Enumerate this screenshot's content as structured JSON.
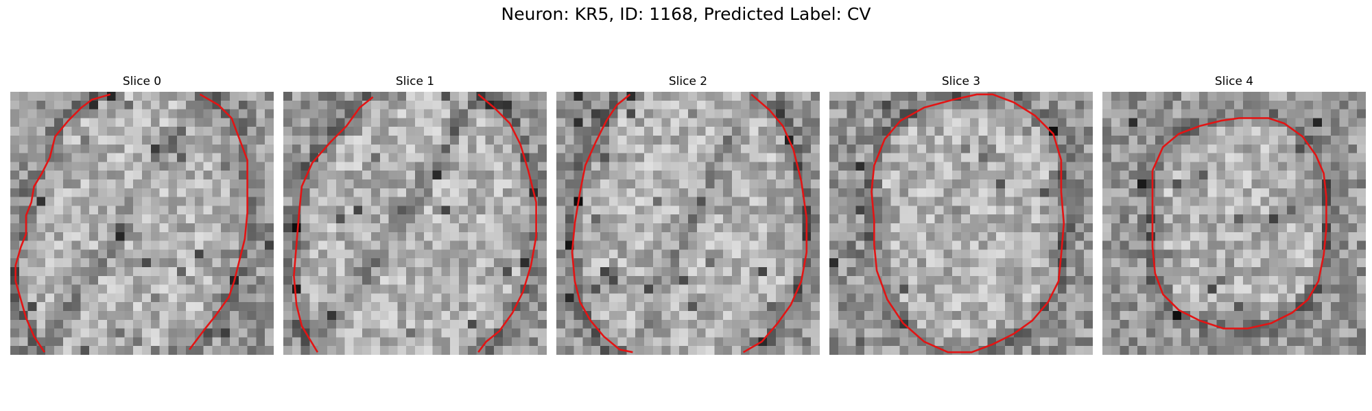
{
  "figure": {
    "title": "Neuron: KR5, ID: 1168, Predicted Label: CV"
  },
  "panels": [
    {
      "title": "Slice 0",
      "contour": [
        [
          0.38,
          0.01
        ],
        [
          0.31,
          0.03
        ],
        [
          0.27,
          0.06
        ],
        [
          0.22,
          0.11
        ],
        [
          0.17,
          0.17
        ],
        [
          0.15,
          0.25
        ],
        [
          0.12,
          0.31
        ],
        [
          0.09,
          0.36
        ],
        [
          0.08,
          0.42
        ],
        [
          0.06,
          0.47
        ],
        [
          0.06,
          0.54
        ],
        [
          0.04,
          0.59
        ],
        [
          0.02,
          0.66
        ],
        [
          0.02,
          0.72
        ],
        [
          0.04,
          0.79
        ],
        [
          0.06,
          0.86
        ],
        [
          0.09,
          0.93
        ],
        [
          0.13,
          0.99
        ]
      ],
      "contour_right": [
        [
          0.72,
          0.01
        ],
        [
          0.79,
          0.05
        ],
        [
          0.84,
          0.1
        ],
        [
          0.87,
          0.18
        ],
        [
          0.9,
          0.26
        ],
        [
          0.9,
          0.36
        ],
        [
          0.9,
          0.46
        ],
        [
          0.89,
          0.56
        ],
        [
          0.87,
          0.64
        ],
        [
          0.85,
          0.72
        ],
        [
          0.83,
          0.78
        ],
        [
          0.78,
          0.85
        ],
        [
          0.74,
          0.9
        ],
        [
          0.68,
          0.98
        ]
      ]
    },
    {
      "title": "Slice 1",
      "contour": [
        [
          0.34,
          0.02
        ],
        [
          0.29,
          0.06
        ],
        [
          0.24,
          0.13
        ],
        [
          0.18,
          0.19
        ],
        [
          0.11,
          0.27
        ],
        [
          0.07,
          0.36
        ],
        [
          0.06,
          0.46
        ],
        [
          0.05,
          0.58
        ],
        [
          0.04,
          0.7
        ],
        [
          0.05,
          0.81
        ],
        [
          0.07,
          0.89
        ],
        [
          0.1,
          0.94
        ],
        [
          0.13,
          0.99
        ]
      ],
      "contour_right": [
        [
          0.74,
          0.01
        ],
        [
          0.8,
          0.06
        ],
        [
          0.86,
          0.12
        ],
        [
          0.9,
          0.2
        ],
        [
          0.93,
          0.3
        ],
        [
          0.96,
          0.42
        ],
        [
          0.96,
          0.55
        ],
        [
          0.94,
          0.66
        ],
        [
          0.91,
          0.76
        ],
        [
          0.87,
          0.84
        ],
        [
          0.82,
          0.91
        ],
        [
          0.77,
          0.95
        ],
        [
          0.74,
          0.99
        ]
      ]
    },
    {
      "title": "Slice 2",
      "contour": [
        [
          0.28,
          0.01
        ],
        [
          0.23,
          0.05
        ],
        [
          0.19,
          0.11
        ],
        [
          0.15,
          0.19
        ],
        [
          0.11,
          0.28
        ],
        [
          0.09,
          0.38
        ],
        [
          0.07,
          0.5
        ],
        [
          0.06,
          0.61
        ],
        [
          0.07,
          0.72
        ],
        [
          0.09,
          0.8
        ],
        [
          0.13,
          0.87
        ],
        [
          0.18,
          0.93
        ],
        [
          0.24,
          0.98
        ],
        [
          0.29,
          0.99
        ]
      ],
      "contour_right": [
        [
          0.74,
          0.01
        ],
        [
          0.81,
          0.07
        ],
        [
          0.86,
          0.13
        ],
        [
          0.9,
          0.22
        ],
        [
          0.93,
          0.34
        ],
        [
          0.95,
          0.48
        ],
        [
          0.95,
          0.61
        ],
        [
          0.93,
          0.72
        ],
        [
          0.89,
          0.81
        ],
        [
          0.84,
          0.88
        ],
        [
          0.78,
          0.95
        ],
        [
          0.71,
          0.99
        ]
      ]
    },
    {
      "title": "Slice 3",
      "contour": [
        [
          0.17,
          0.49
        ],
        [
          0.16,
          0.38
        ],
        [
          0.17,
          0.28
        ],
        [
          0.21,
          0.18
        ],
        [
          0.27,
          0.11
        ],
        [
          0.36,
          0.06
        ],
        [
          0.47,
          0.03
        ],
        [
          0.56,
          0.01
        ],
        [
          0.62,
          0.01
        ],
        [
          0.7,
          0.04
        ],
        [
          0.78,
          0.09
        ],
        [
          0.85,
          0.16
        ],
        [
          0.88,
          0.26
        ],
        [
          0.88,
          0.38
        ],
        [
          0.89,
          0.5
        ],
        [
          0.88,
          0.62
        ],
        [
          0.87,
          0.72
        ],
        [
          0.83,
          0.8
        ],
        [
          0.77,
          0.87
        ],
        [
          0.7,
          0.92
        ],
        [
          0.62,
          0.96
        ],
        [
          0.54,
          0.99
        ],
        [
          0.45,
          0.99
        ],
        [
          0.36,
          0.95
        ],
        [
          0.28,
          0.88
        ],
        [
          0.22,
          0.79
        ],
        [
          0.18,
          0.68
        ],
        [
          0.17,
          0.58
        ],
        [
          0.17,
          0.49
        ]
      ]
    },
    {
      "title": "Slice 4",
      "contour": [
        [
          0.19,
          0.3
        ],
        [
          0.23,
          0.21
        ],
        [
          0.29,
          0.16
        ],
        [
          0.37,
          0.13
        ],
        [
          0.45,
          0.11
        ],
        [
          0.52,
          0.1
        ],
        [
          0.63,
          0.1
        ],
        [
          0.69,
          0.12
        ],
        [
          0.76,
          0.17
        ],
        [
          0.81,
          0.24
        ],
        [
          0.84,
          0.31
        ],
        [
          0.85,
          0.4
        ],
        [
          0.85,
          0.52
        ],
        [
          0.84,
          0.62
        ],
        [
          0.82,
          0.72
        ],
        [
          0.78,
          0.79
        ],
        [
          0.72,
          0.84
        ],
        [
          0.64,
          0.88
        ],
        [
          0.55,
          0.9
        ],
        [
          0.46,
          0.9
        ],
        [
          0.37,
          0.87
        ],
        [
          0.29,
          0.83
        ],
        [
          0.23,
          0.77
        ],
        [
          0.2,
          0.69
        ],
        [
          0.19,
          0.59
        ],
        [
          0.19,
          0.5
        ],
        [
          0.19,
          0.4
        ],
        [
          0.19,
          0.3
        ]
      ]
    }
  ],
  "colors": {
    "contour": "#e31414",
    "background": "#ffffff"
  }
}
